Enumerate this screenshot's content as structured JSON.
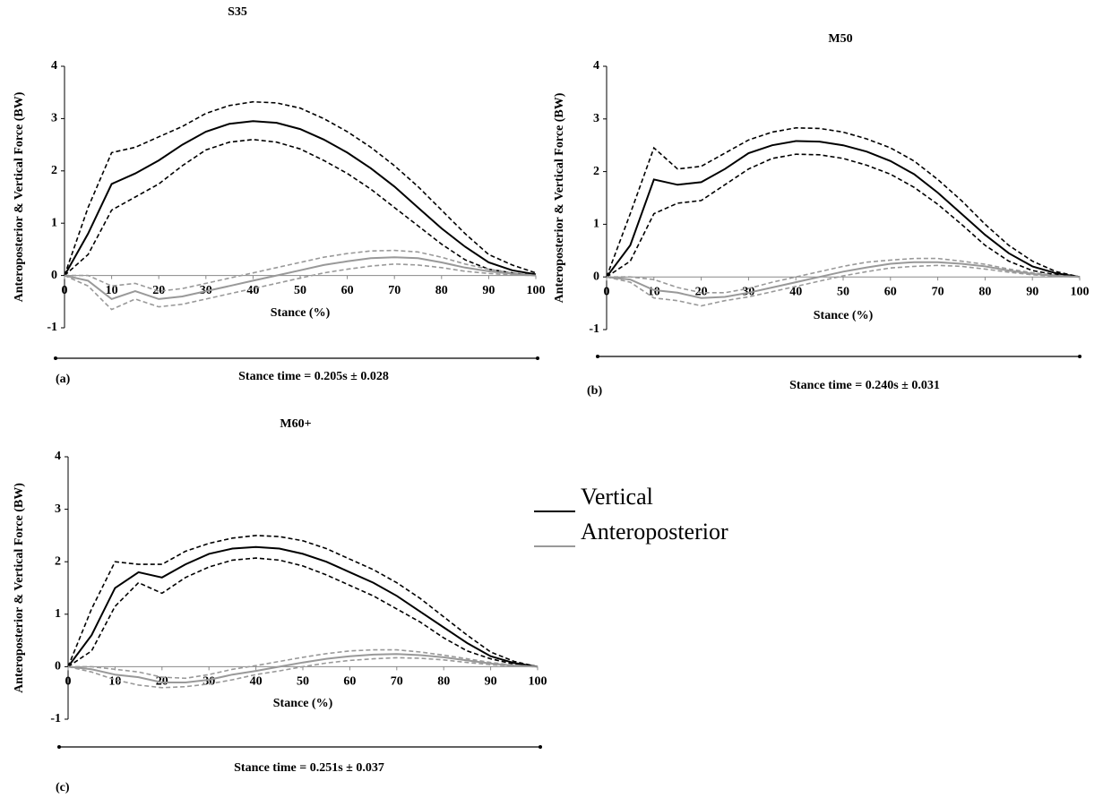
{
  "chart_data": [
    {
      "type": "line",
      "title": "S35",
      "panel": "(a)",
      "caption": "Stance time = 0.205s ± 0.028",
      "xlabel": "Stance (%)",
      "ylabel": "Anteroposterior & Vertical Force (BW)",
      "xlim": [
        0,
        100
      ],
      "ylim": [
        -1,
        4
      ],
      "xticks": [
        0,
        10,
        20,
        30,
        40,
        50,
        60,
        70,
        80,
        90,
        100
      ],
      "yticks": [
        -1,
        0,
        1,
        2,
        3,
        4
      ],
      "x": [
        0,
        5,
        10,
        15,
        20,
        25,
        30,
        35,
        40,
        45,
        50,
        55,
        60,
        65,
        70,
        75,
        80,
        85,
        90,
        95,
        100
      ],
      "series": [
        {
          "color": "#000000",
          "values": [
            0,
            0.8,
            1.75,
            1.95,
            2.2,
            2.5,
            2.75,
            2.9,
            2.95,
            2.92,
            2.8,
            2.6,
            2.35,
            2.05,
            1.7,
            1.3,
            0.9,
            0.55,
            0.25,
            0.1,
            0.02
          ],
          "upper": [
            0,
            1.3,
            2.35,
            2.45,
            2.65,
            2.85,
            3.1,
            3.25,
            3.32,
            3.3,
            3.2,
            3.0,
            2.75,
            2.45,
            2.1,
            1.7,
            1.25,
            0.8,
            0.4,
            0.2,
            0.05
          ],
          "lower": [
            0,
            0.4,
            1.25,
            1.5,
            1.75,
            2.1,
            2.4,
            2.55,
            2.6,
            2.55,
            2.42,
            2.2,
            1.95,
            1.65,
            1.3,
            0.95,
            0.6,
            0.3,
            0.12,
            0.05,
            0
          ]
        },
        {
          "color": "#999999",
          "values": [
            0,
            -0.1,
            -0.45,
            -0.3,
            -0.45,
            -0.4,
            -0.3,
            -0.2,
            -0.1,
            0,
            0.1,
            0.2,
            0.27,
            0.33,
            0.35,
            0.33,
            0.25,
            0.15,
            0.08,
            0.03,
            0
          ],
          "upper": [
            0,
            0,
            -0.2,
            -0.15,
            -0.3,
            -0.25,
            -0.15,
            -0.05,
            0.05,
            0.15,
            0.25,
            0.35,
            0.42,
            0.47,
            0.48,
            0.45,
            0.35,
            0.22,
            0.12,
            0.05,
            0
          ],
          "lower": [
            0,
            -0.2,
            -0.65,
            -0.45,
            -0.6,
            -0.55,
            -0.45,
            -0.35,
            -0.25,
            -0.15,
            -0.05,
            0.05,
            0.12,
            0.18,
            0.22,
            0.2,
            0.15,
            0.08,
            0.04,
            0.01,
            0
          ]
        }
      ]
    },
    {
      "type": "line",
      "title": "M50",
      "panel": "(b)",
      "caption": "Stance time = 0.240s ± 0.031",
      "xlabel": "Stance (%)",
      "ylabel": "Anteroposterior & Vertical Force (BW)",
      "xlim": [
        0,
        100
      ],
      "ylim": [
        -1,
        4
      ],
      "xticks": [
        0,
        10,
        20,
        30,
        40,
        50,
        60,
        70,
        80,
        90,
        100
      ],
      "yticks": [
        -1,
        0,
        1,
        2,
        3,
        4
      ],
      "x": [
        0,
        5,
        10,
        15,
        20,
        25,
        30,
        35,
        40,
        45,
        50,
        55,
        60,
        65,
        70,
        75,
        80,
        85,
        90,
        95,
        100
      ],
      "series": [
        {
          "color": "#000000",
          "values": [
            0,
            0.6,
            1.85,
            1.75,
            1.8,
            2.05,
            2.35,
            2.5,
            2.58,
            2.57,
            2.5,
            2.38,
            2.2,
            1.95,
            1.6,
            1.2,
            0.8,
            0.45,
            0.2,
            0.07,
            0
          ],
          "upper": [
            0,
            1.2,
            2.45,
            2.05,
            2.1,
            2.35,
            2.6,
            2.75,
            2.83,
            2.82,
            2.75,
            2.62,
            2.45,
            2.2,
            1.85,
            1.45,
            1.0,
            0.6,
            0.3,
            0.1,
            0
          ],
          "lower": [
            0,
            0.3,
            1.2,
            1.4,
            1.45,
            1.75,
            2.05,
            2.25,
            2.33,
            2.32,
            2.25,
            2.12,
            1.95,
            1.7,
            1.38,
            1.0,
            0.6,
            0.3,
            0.12,
            0.04,
            0
          ]
        },
        {
          "color": "#999999",
          "values": [
            0,
            -0.05,
            -0.25,
            -0.3,
            -0.4,
            -0.38,
            -0.3,
            -0.2,
            -0.1,
            0,
            0.1,
            0.18,
            0.25,
            0.28,
            0.28,
            0.25,
            0.2,
            0.12,
            0.06,
            0.02,
            0
          ],
          "upper": [
            0,
            0,
            -0.05,
            -0.2,
            -0.3,
            -0.3,
            -0.22,
            -0.1,
            0,
            0.1,
            0.2,
            0.28,
            0.32,
            0.35,
            0.35,
            0.3,
            0.24,
            0.15,
            0.08,
            0.03,
            0
          ],
          "lower": [
            0,
            -0.1,
            -0.4,
            -0.45,
            -0.55,
            -0.45,
            -0.38,
            -0.28,
            -0.18,
            -0.08,
            0.02,
            0.1,
            0.17,
            0.2,
            0.22,
            0.2,
            0.15,
            0.09,
            0.04,
            0.01,
            0
          ]
        }
      ]
    },
    {
      "type": "line",
      "title": "M60+",
      "panel": "(c)",
      "caption": "Stance time = 0.251s ± 0.037",
      "xlabel": "Stance (%)",
      "ylabel": "Anteroposterior & Vertical Force (BW)",
      "xlim": [
        0,
        100
      ],
      "ylim": [
        -1,
        4
      ],
      "xticks": [
        0,
        10,
        20,
        30,
        40,
        50,
        60,
        70,
        80,
        90,
        100
      ],
      "yticks": [
        -1,
        0,
        1,
        2,
        3,
        4
      ],
      "x": [
        0,
        5,
        10,
        15,
        20,
        25,
        30,
        35,
        40,
        45,
        50,
        55,
        60,
        65,
        70,
        75,
        80,
        85,
        90,
        95,
        100
      ],
      "series": [
        {
          "color": "#000000",
          "values": [
            0,
            0.6,
            1.5,
            1.8,
            1.7,
            1.95,
            2.15,
            2.25,
            2.28,
            2.25,
            2.15,
            2.0,
            1.8,
            1.6,
            1.35,
            1.05,
            0.75,
            0.45,
            0.2,
            0.07,
            0
          ],
          "upper": [
            0,
            1.1,
            2.0,
            1.95,
            1.95,
            2.2,
            2.35,
            2.45,
            2.5,
            2.48,
            2.4,
            2.25,
            2.05,
            1.85,
            1.6,
            1.3,
            0.95,
            0.6,
            0.28,
            0.1,
            0
          ],
          "lower": [
            0,
            0.3,
            1.15,
            1.6,
            1.4,
            1.7,
            1.9,
            2.03,
            2.07,
            2.03,
            1.92,
            1.75,
            1.55,
            1.35,
            1.1,
            0.85,
            0.55,
            0.3,
            0.15,
            0.05,
            0
          ]
        },
        {
          "color": "#999999",
          "values": [
            0,
            -0.05,
            -0.15,
            -0.2,
            -0.3,
            -0.3,
            -0.25,
            -0.15,
            -0.08,
            0,
            0.08,
            0.15,
            0.2,
            0.23,
            0.24,
            0.22,
            0.18,
            0.12,
            0.06,
            0.02,
            0
          ],
          "upper": [
            0,
            0,
            -0.05,
            -0.1,
            -0.2,
            -0.22,
            -0.15,
            -0.05,
            0.02,
            0.1,
            0.18,
            0.25,
            0.3,
            0.32,
            0.32,
            0.28,
            0.22,
            0.15,
            0.08,
            0.03,
            0
          ],
          "lower": [
            0,
            -0.1,
            -0.25,
            -0.35,
            -0.4,
            -0.38,
            -0.33,
            -0.25,
            -0.15,
            -0.08,
            0,
            0.07,
            0.12,
            0.15,
            0.17,
            0.16,
            0.13,
            0.08,
            0.04,
            0.01,
            0
          ]
        }
      ]
    }
  ],
  "legend": [
    {
      "name": "Vertical",
      "color": "#000000"
    },
    {
      "name": "Anteroposterior",
      "color": "#999999"
    }
  ]
}
